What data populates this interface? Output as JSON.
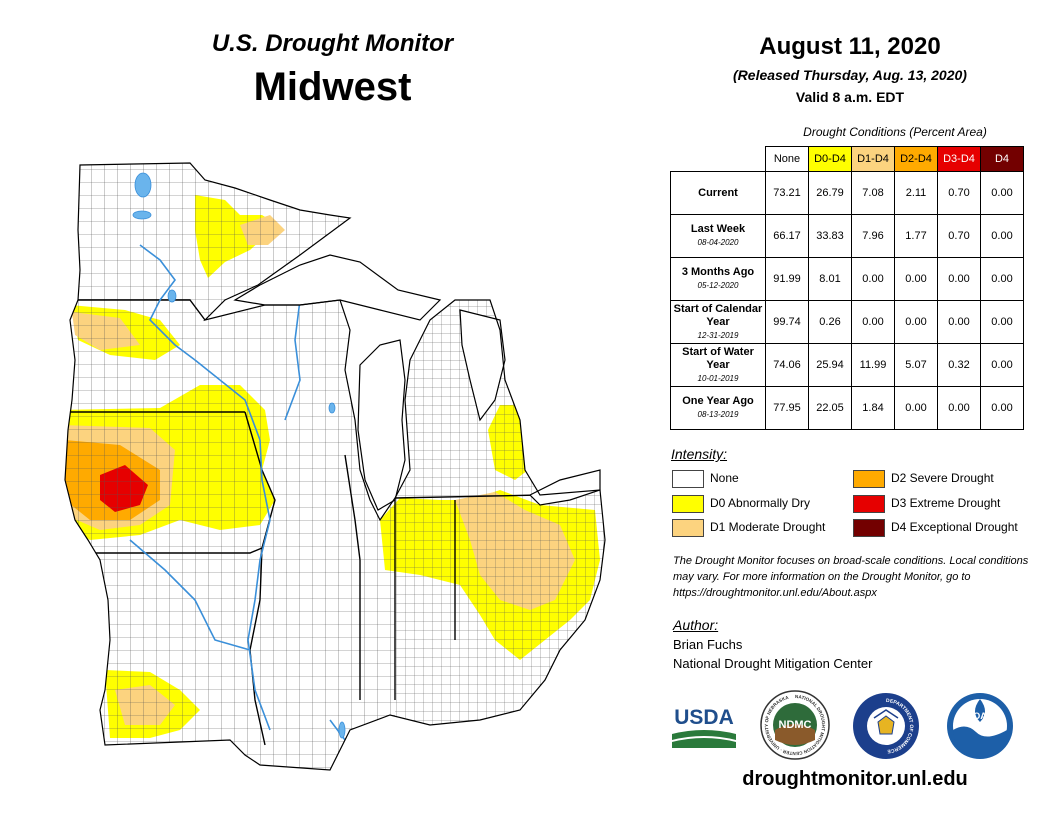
{
  "header": {
    "title": "U.S. Drought Monitor",
    "region": "Midwest",
    "date": "August 11, 2020",
    "released": "(Released Thursday, Aug. 13, 2020)",
    "valid": "Valid 8 a.m. EDT"
  },
  "table": {
    "caption": "Drought Conditions (Percent Area)",
    "columns": [
      {
        "label": "None",
        "color": "#ffffff"
      },
      {
        "label": "D0-D4",
        "color": "#ffff00"
      },
      {
        "label": "D1-D4",
        "color": "#fcd37f"
      },
      {
        "label": "D2-D4",
        "color": "#ffaa00"
      },
      {
        "label": "D3-D4",
        "color": "#e60000"
      },
      {
        "label": "D4",
        "color": "#730000"
      }
    ],
    "rows": [
      {
        "label": "Current",
        "sub": "",
        "values": [
          "73.21",
          "26.79",
          "7.08",
          "2.11",
          "0.70",
          "0.00"
        ]
      },
      {
        "label": "Last Week",
        "sub": "08-04-2020",
        "values": [
          "66.17",
          "33.83",
          "7.96",
          "1.77",
          "0.70",
          "0.00"
        ]
      },
      {
        "label": "3 Months Ago",
        "sub": "05-12-2020",
        "values": [
          "91.99",
          "8.01",
          "0.00",
          "0.00",
          "0.00",
          "0.00"
        ]
      },
      {
        "label": "Start of Calendar Year",
        "sub": "12-31-2019",
        "values": [
          "99.74",
          "0.26",
          "0.00",
          "0.00",
          "0.00",
          "0.00"
        ]
      },
      {
        "label": "Start of Water Year",
        "sub": "10-01-2019",
        "values": [
          "74.06",
          "25.94",
          "11.99",
          "5.07",
          "0.32",
          "0.00"
        ]
      },
      {
        "label": "One Year Ago",
        "sub": "08-13-2019",
        "values": [
          "77.95",
          "22.05",
          "1.84",
          "0.00",
          "0.00",
          "0.00"
        ]
      }
    ]
  },
  "legend": {
    "heading": "Intensity:",
    "items": [
      {
        "label": "None",
        "color": "#ffffff"
      },
      {
        "label": "D0 Abnormally Dry",
        "color": "#ffff00"
      },
      {
        "label": "D1 Moderate Drought",
        "color": "#fcd37f"
      },
      {
        "label": "D2 Severe Drought",
        "color": "#ffaa00"
      },
      {
        "label": "D3 Extreme Drought",
        "color": "#e60000"
      },
      {
        "label": "D4 Exceptional Drought",
        "color": "#730000"
      }
    ]
  },
  "note": "The Drought Monitor focuses on broad-scale conditions. Local conditions may vary. For more information on the Drought Monitor, go to https://droughtmonitor.unl.edu/About.aspx",
  "author": {
    "heading": "Author:",
    "name": "Brian Fuchs",
    "org": "National Drought Mitigation Center"
  },
  "logos": {
    "usda": "USDA",
    "ndmc": "NDMC",
    "ndmc_ring": "NATIONAL DROUGHT MITIGATION CENTER · UNIVERSITY OF NEBRASKA",
    "commerce": "DEPARTMENT OF COMMERCE",
    "noaa": "NOAA"
  },
  "website": "droughtmonitor.unl.edu"
}
